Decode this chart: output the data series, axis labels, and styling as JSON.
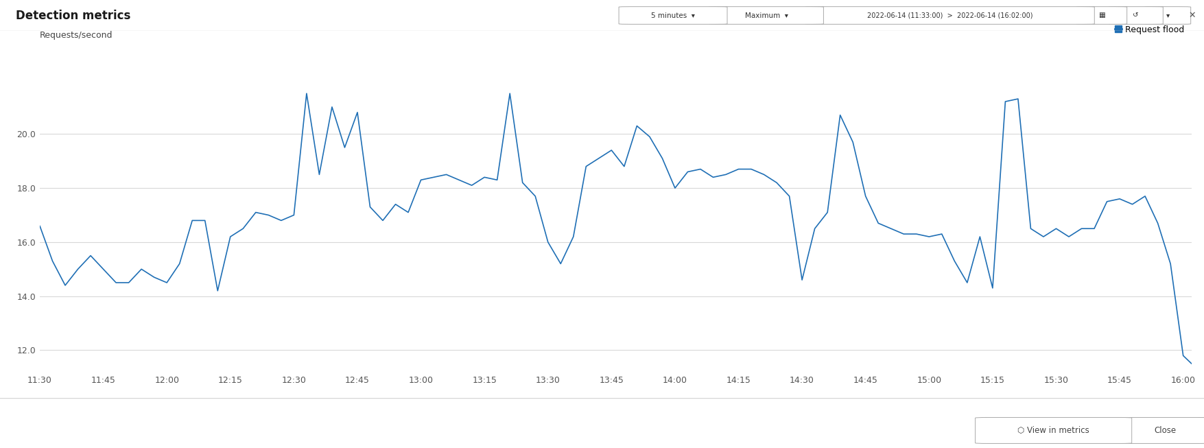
{
  "title": "Detection metrics",
  "ylabel": "Requests/second",
  "legend_label": "Request flood",
  "legend_color": "#1f6fb5",
  "line_color": "#1f6fb5",
  "background_color": "#ffffff",
  "plot_bg_color": "#ffffff",
  "header_bg": "#f8f8f8",
  "border_color": "#d5d5d5",
  "ylim": [
    11.2,
    22.8
  ],
  "yticks": [
    12.0,
    14.0,
    16.0,
    18.0,
    20.0
  ],
  "x_labels": [
    "11:30",
    "11:45",
    "12:00",
    "12:15",
    "12:30",
    "12:45",
    "13:00",
    "13:15",
    "13:30",
    "13:45",
    "14:00",
    "14:15",
    "14:30",
    "14:45",
    "15:00",
    "15:15",
    "15:30",
    "15:45",
    "16:00"
  ],
  "header_text_left": "Detection metrics",
  "header_controls": "5 minutes ▾    Maximum ▾    2022-06-14 (11:33:00)  >  2022-06-14 (16:02:00)",
  "footer_btn1": "↗ View in metrics",
  "footer_btn2": "Close",
  "time_points_min": [
    0,
    3,
    6,
    9,
    12,
    15,
    18,
    21,
    24,
    27,
    30,
    33,
    36,
    39,
    42,
    45,
    48,
    51,
    54,
    57,
    60,
    63,
    66,
    69,
    72,
    75,
    78,
    81,
    84,
    87,
    90,
    93,
    96,
    99,
    102,
    105,
    108,
    111,
    114,
    117,
    120,
    123,
    126,
    129,
    132,
    135,
    138,
    141,
    144,
    147,
    150,
    153,
    156,
    159,
    162,
    165,
    168,
    171,
    174,
    177,
    180,
    183,
    186,
    189,
    192,
    195,
    198,
    201,
    204,
    207,
    210,
    213,
    216,
    219,
    222,
    225,
    228,
    231,
    234,
    237,
    240,
    243,
    246,
    249,
    252,
    255,
    258,
    261,
    264,
    267,
    270,
    272
  ],
  "values": [
    16.6,
    15.3,
    14.4,
    15.0,
    15.5,
    15.0,
    14.5,
    14.5,
    15.0,
    14.7,
    14.5,
    15.2,
    16.8,
    16.8,
    14.2,
    16.2,
    16.5,
    17.1,
    17.0,
    16.8,
    17.0,
    21.5,
    18.5,
    21.0,
    19.5,
    20.8,
    17.3,
    16.8,
    17.4,
    17.1,
    18.3,
    18.4,
    18.5,
    18.3,
    18.1,
    18.4,
    18.3,
    21.5,
    18.2,
    17.7,
    16.0,
    15.2,
    16.2,
    18.8,
    19.1,
    19.4,
    18.8,
    20.3,
    19.9,
    19.1,
    18.0,
    18.6,
    18.7,
    18.4,
    18.5,
    18.7,
    18.7,
    18.5,
    18.2,
    17.7,
    14.6,
    16.5,
    17.1,
    20.7,
    19.7,
    17.7,
    16.7,
    16.5,
    16.3,
    16.3,
    16.2,
    16.3,
    15.3,
    14.5,
    16.2,
    14.3,
    21.2,
    21.3,
    16.5,
    16.2,
    16.5,
    16.2,
    16.5,
    16.5,
    17.5,
    17.6,
    17.4,
    17.7,
    16.7,
    15.2,
    11.8,
    11.5
  ]
}
